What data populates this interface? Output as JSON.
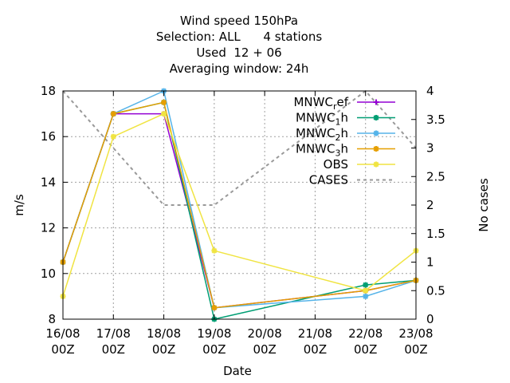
{
  "title_lines": [
    "Wind speed 150hPa",
    "Selection: ALL      4 stations",
    "Used  12 + 06",
    "Averaging window: 24h"
  ],
  "chart_data": {
    "type": "line",
    "title": "Wind speed 150hPa",
    "xlabel": "Date",
    "ylabel": "m/s",
    "y2label": "No cases",
    "x_ticks": [
      "16/08\n00Z",
      "17/08\n00Z",
      "18/08\n00Z",
      "19/08\n00Z",
      "20/08\n00Z",
      "21/08\n00Z",
      "22/08\n00Z",
      "23/08\n00Z"
    ],
    "x": [
      "16/08 00Z",
      "17/08 00Z",
      "18/08 00Z",
      "19/08 00Z",
      "22/08 00Z",
      "23/08 00Z"
    ],
    "ylim": [
      8,
      18
    ],
    "y_ticks": [
      8,
      10,
      12,
      14,
      16,
      18
    ],
    "y2lim": [
      0,
      4
    ],
    "y2_ticks": [
      "0",
      "0.5",
      "1",
      "1.5",
      "2",
      "2.5",
      "3",
      "3.5",
      "4"
    ],
    "legend_position": "top-right",
    "grid": true,
    "series": [
      {
        "name": "MNWC",
        "sub": "r",
        "suffix": "ef",
        "color": "#9400d3",
        "marker": "plus",
        "axis": "y",
        "points": [
          [
            "16/08 00Z",
            10.5
          ],
          [
            "17/08 00Z",
            17.0
          ],
          [
            "18/08 00Z",
            17.0
          ],
          [
            "19/08 00Z",
            8.5
          ],
          [
            "22/08 00Z",
            9.25
          ],
          [
            "23/08 00Z",
            9.7
          ]
        ]
      },
      {
        "name": "MNWC",
        "sub": "1",
        "suffix": "h",
        "color": "#009e73",
        "marker": "star",
        "axis": "y",
        "points": [
          [
            "16/08 00Z",
            10.5
          ],
          [
            "17/08 00Z",
            17.0
          ],
          [
            "18/08 00Z",
            17.5
          ],
          [
            "19/08 00Z",
            8.0
          ],
          [
            "22/08 00Z",
            9.5
          ],
          [
            "23/08 00Z",
            9.7
          ]
        ]
      },
      {
        "name": "MNWC",
        "sub": "2",
        "suffix": "h",
        "color": "#56b4e9",
        "marker": "star",
        "axis": "y",
        "points": [
          [
            "16/08 00Z",
            10.5
          ],
          [
            "17/08 00Z",
            17.0
          ],
          [
            "18/08 00Z",
            18.0
          ],
          [
            "19/08 00Z",
            8.5
          ],
          [
            "22/08 00Z",
            9.0
          ],
          [
            "23/08 00Z",
            9.7
          ]
        ]
      },
      {
        "name": "MNWC",
        "sub": "3",
        "suffix": "h",
        "color": "#e69f00",
        "marker": "star",
        "axis": "y",
        "points": [
          [
            "16/08 00Z",
            10.5
          ],
          [
            "17/08 00Z",
            17.0
          ],
          [
            "18/08 00Z",
            17.5
          ],
          [
            "19/08 00Z",
            8.5
          ],
          [
            "22/08 00Z",
            9.25
          ],
          [
            "23/08 00Z",
            9.7
          ]
        ]
      },
      {
        "name": "OBS",
        "sub": "",
        "suffix": "",
        "color": "#f0e442",
        "marker": "star",
        "axis": "y",
        "points": [
          [
            "16/08 00Z",
            9.0
          ],
          [
            "17/08 00Z",
            16.0
          ],
          [
            "18/08 00Z",
            17.0
          ],
          [
            "19/08 00Z",
            11.0
          ],
          [
            "22/08 00Z",
            9.25
          ],
          [
            "23/08 00Z",
            11.0
          ]
        ]
      },
      {
        "name": "CASES",
        "sub": "",
        "suffix": "",
        "color": "#999999",
        "marker": "none",
        "dashed": true,
        "axis": "y2",
        "points": [
          [
            "16/08 00Z",
            4
          ],
          [
            "17/08 00Z",
            3
          ],
          [
            "18/08 00Z",
            2
          ],
          [
            "19/08 00Z",
            2
          ],
          [
            "22/08 00Z",
            4
          ],
          [
            "23/08 00Z",
            3
          ]
        ]
      }
    ]
  }
}
